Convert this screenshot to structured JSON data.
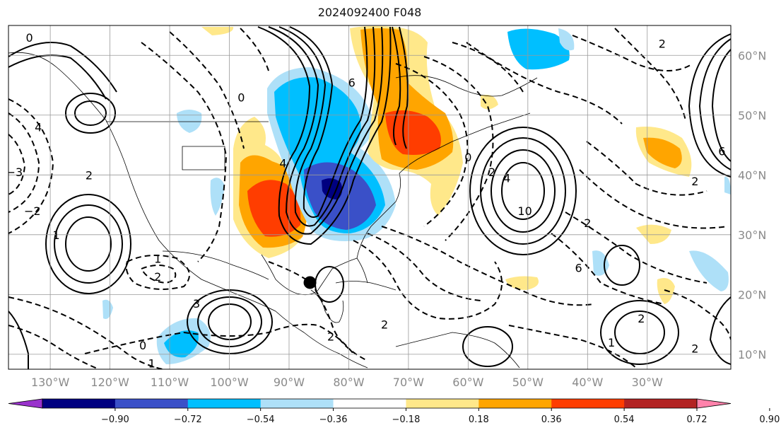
{
  "title": "2024092400 F048",
  "map": {
    "lon_range": [
      -137,
      -16
    ],
    "lat_range": [
      7.5,
      65
    ],
    "lon_ticks": [
      {
        "value": -130,
        "label": "130°W"
      },
      {
        "value": -120,
        "label": "120°W"
      },
      {
        "value": -110,
        "label": "110°W"
      },
      {
        "value": -100,
        "label": "100°W"
      },
      {
        "value": -90,
        "label": "90°W"
      },
      {
        "value": -80,
        "label": "80°W"
      },
      {
        "value": -70,
        "label": "70°W"
      },
      {
        "value": -60,
        "label": "60°W"
      },
      {
        "value": -50,
        "label": "50°W"
      },
      {
        "value": -40,
        "label": "40°W"
      },
      {
        "value": -30,
        "label": "30°W"
      }
    ],
    "lat_ticks": [
      {
        "value": 10,
        "label": "10°N"
      },
      {
        "value": 20,
        "label": "20°N"
      },
      {
        "value": 30,
        "label": "30°N"
      },
      {
        "value": 40,
        "label": "40°N"
      },
      {
        "value": 50,
        "label": "50°N"
      },
      {
        "value": 60,
        "label": "60°N"
      }
    ],
    "storm_marker": {
      "lon": -86.5,
      "lat": 22
    }
  },
  "colorbar": {
    "colors": [
      "#9932cc",
      "#000080",
      "#3a50c8",
      "#00bfff",
      "#aee0f8",
      "#ffffff",
      "#ffe88a",
      "#ffa500",
      "#ff3d00",
      "#b22222",
      "#ff82ab"
    ],
    "labels": [
      "−0.90",
      "−0.72",
      "−0.54",
      "−0.36",
      "−0.18",
      "0.18",
      "0.36",
      "0.54",
      "0.72",
      "0.90"
    ]
  },
  "contour_labels": [
    {
      "text": "0",
      "lon": -133.5,
      "lat": 63
    },
    {
      "text": "4",
      "lon": -132,
      "lat": 48
    },
    {
      "text": "−3",
      "lon": -136,
      "lat": 40.5
    },
    {
      "text": "2",
      "lon": -123.5,
      "lat": 40
    },
    {
      "text": "−2",
      "lon": -133,
      "lat": 34
    },
    {
      "text": "1",
      "lon": -129,
      "lat": 30
    },
    {
      "text": "1",
      "lon": -112,
      "lat": 26
    },
    {
      "text": "2",
      "lon": -112,
      "lat": 23
    },
    {
      "text": "3",
      "lon": -105.5,
      "lat": 18.5
    },
    {
      "text": "0",
      "lon": -114.5,
      "lat": 11.5
    },
    {
      "text": "1",
      "lon": -113,
      "lat": 8.5
    },
    {
      "text": "4",
      "lon": -91,
      "lat": 42
    },
    {
      "text": "0",
      "lon": -98,
      "lat": 53
    },
    {
      "text": "6",
      "lon": -79.5,
      "lat": 55.5
    },
    {
      "text": "2",
      "lon": -83,
      "lat": 13
    },
    {
      "text": "2",
      "lon": -74,
      "lat": 15
    },
    {
      "text": "4",
      "lon": -53.5,
      "lat": 39.5
    },
    {
      "text": "2",
      "lon": -56,
      "lat": 40.5
    },
    {
      "text": "0",
      "lon": -60,
      "lat": 43
    },
    {
      "text": "10",
      "lon": -50.5,
      "lat": 34
    },
    {
      "text": "2",
      "lon": -40,
      "lat": 32
    },
    {
      "text": "6",
      "lon": -41.5,
      "lat": 24.5
    },
    {
      "text": "2",
      "lon": -27.5,
      "lat": 62
    },
    {
      "text": "6",
      "lon": -17.5,
      "lat": 44
    },
    {
      "text": "2",
      "lon": -22,
      "lat": 39
    },
    {
      "text": "2",
      "lon": -31,
      "lat": 16
    },
    {
      "text": "1",
      "lon": -36,
      "lat": 12
    },
    {
      "text": "2",
      "lon": -22,
      "lat": 11
    }
  ]
}
